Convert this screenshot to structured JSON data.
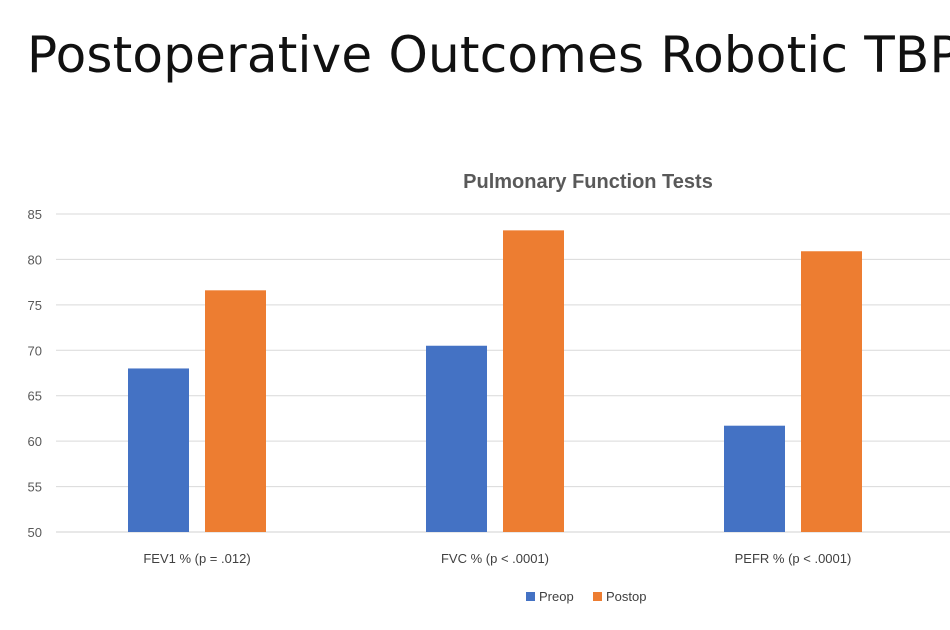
{
  "slide": {
    "title": "Postoperative Outcomes Robotic TBP"
  },
  "chart_data": {
    "type": "bar",
    "title": "Pulmonary Function Tests",
    "categories": [
      "FEV1 % (p = .012)",
      "FVC % (p < .0001)",
      "PEFR % (p < .0001)"
    ],
    "series": [
      {
        "name": "Preop",
        "values": [
          68,
          70.5,
          61.7
        ],
        "color": "#4472C4"
      },
      {
        "name": "Postop",
        "values": [
          76.6,
          83.2,
          80.9
        ],
        "color": "#ED7D31"
      }
    ],
    "ylim": [
      50,
      85
    ],
    "yticks": [
      50,
      55,
      60,
      65,
      70,
      75,
      80,
      85
    ],
    "grid": true,
    "legend": "bottom-center",
    "xlabel": "",
    "ylabel": ""
  }
}
